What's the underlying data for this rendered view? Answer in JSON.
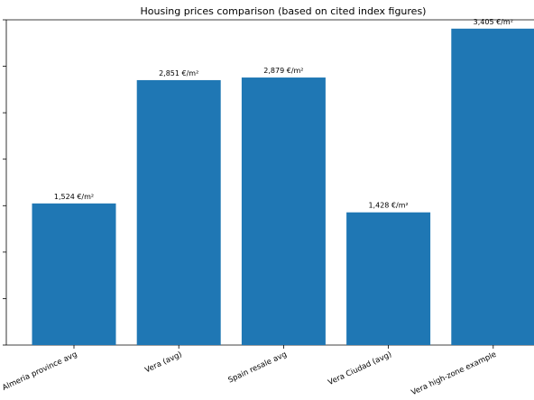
{
  "chart_data": {
    "type": "bar",
    "title": "Housing prices comparison (based on cited index figures)",
    "xlabel": "",
    "ylabel": "",
    "categories": [
      "Almeria province avg",
      "Vera (avg)",
      "Spain resale avg",
      "Vera Ciudad (avg)",
      "Vera high-zone example"
    ],
    "values": [
      1524,
      2851,
      2879,
      1428,
      3405
    ],
    "value_labels": [
      "1,524 €/m²",
      "2,851 €/m²",
      "2,879 €/m²",
      "1,428 €/m²",
      "3,405 €/m²"
    ],
    "ylim": [
      0,
      3500
    ],
    "yticks": [
      0,
      500,
      1000,
      1500,
      2000,
      2500,
      3000,
      3500
    ],
    "bar_color": "#1f77b4",
    "grid": false
  }
}
